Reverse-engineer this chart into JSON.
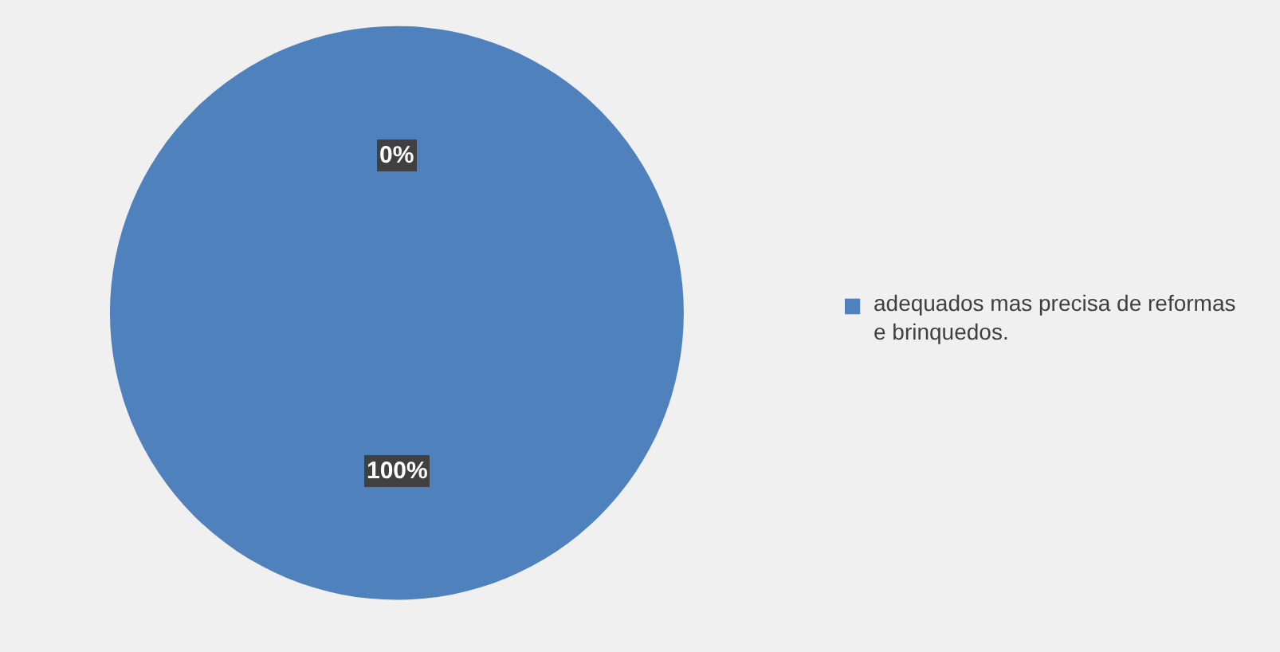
{
  "chart_data": {
    "type": "pie",
    "categories": [
      "adequados mas precisa de reformas e brinquedos.",
      null
    ],
    "values": [
      100,
      0
    ],
    "colors": [
      "#4f81bd",
      "#c0504d"
    ],
    "value_labels": [
      "100%",
      "0%"
    ],
    "legend": "right"
  }
}
